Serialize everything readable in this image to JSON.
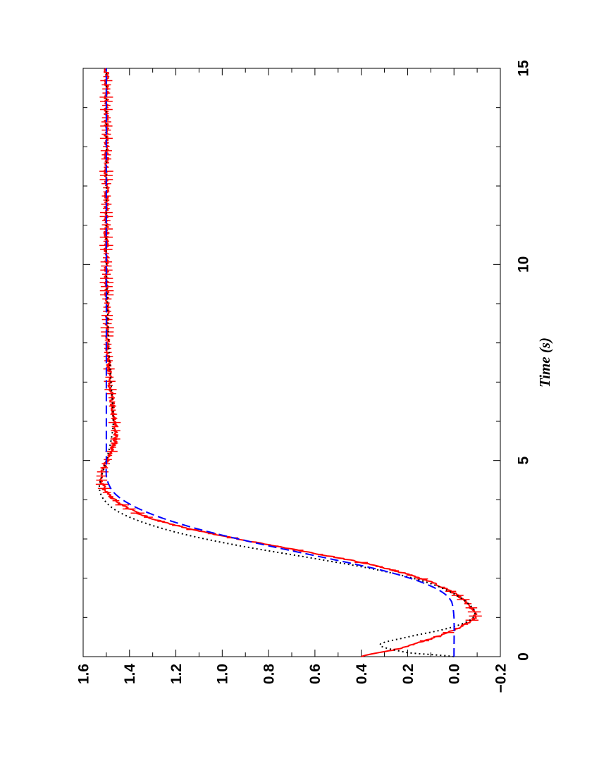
{
  "chart_data": {
    "type": "line",
    "orientation": "rotated-90-clockwise",
    "xlabel": "Time (s)",
    "ylabel": "",
    "xlim": [
      0,
      15
    ],
    "ylim": [
      -0.2,
      1.6
    ],
    "x_ticks": [
      0,
      5,
      10,
      15
    ],
    "x_tick_labels": [
      "0",
      "5",
      "10",
      "15"
    ],
    "y_ticks": [
      -0.2,
      0.0,
      0.2,
      0.4,
      0.6,
      0.8,
      1.0,
      1.2,
      1.4,
      1.6
    ],
    "y_tick_labels": [
      "−0.2",
      "0.0",
      "0.2",
      "0.4",
      "0.6",
      "0.8",
      "1.0",
      "1.2",
      "1.4",
      "1.6"
    ],
    "grid": false,
    "series": [
      {
        "style": "solid",
        "color": "#ff0000",
        "noisy": true,
        "x": [
          0,
          0.2,
          0.4,
          0.6,
          0.8,
          1.0,
          1.2,
          1.5,
          1.8,
          2.1,
          2.4,
          2.7,
          3.0,
          3.3,
          3.6,
          3.9,
          4.2,
          4.5,
          4.8,
          5.2,
          5.6,
          6.0,
          6.5,
          7.0,
          7.5,
          8.0,
          9.0,
          10.0,
          11.0,
          12.0,
          13.0,
          14.0,
          15.0
        ],
        "y": [
          0.4,
          0.24,
          0.13,
          0.03,
          -0.04,
          -0.09,
          -0.08,
          -0.03,
          0.06,
          0.2,
          0.4,
          0.66,
          0.93,
          1.17,
          1.34,
          1.44,
          1.5,
          1.52,
          1.51,
          1.48,
          1.46,
          1.465,
          1.475,
          1.485,
          1.49,
          1.495,
          1.497,
          1.5,
          1.5,
          1.5,
          1.5,
          1.5,
          1.5
        ]
      },
      {
        "style": "dotted",
        "color": "#000000",
        "x": [
          0,
          0.1,
          0.3,
          0.5,
          0.7,
          0.9,
          1.1,
          1.3,
          1.6,
          1.9,
          2.2,
          2.5,
          2.8,
          3.1,
          3.4,
          3.7,
          4.0,
          4.3,
          4.6,
          5.0,
          5.5,
          6.0,
          7.0,
          8.0,
          9.0,
          10.0,
          12.0,
          15.0
        ],
        "y": [
          0.0,
          0.2,
          0.32,
          0.2,
          0.04,
          -0.06,
          -0.09,
          -0.07,
          0.0,
          0.12,
          0.32,
          0.6,
          0.9,
          1.15,
          1.33,
          1.45,
          1.51,
          1.53,
          1.52,
          1.5,
          1.48,
          1.47,
          1.48,
          1.49,
          1.495,
          1.5,
          1.5,
          1.5
        ]
      },
      {
        "style": "dashed",
        "color": "#0000ff",
        "x": [
          0,
          1.0,
          1.4,
          1.6,
          1.8,
          2.0,
          2.2,
          2.4,
          2.6,
          2.8,
          3.0,
          3.2,
          3.4,
          3.6,
          3.8,
          4.0,
          4.2,
          4.4,
          4.6,
          5.0,
          6.0,
          8.0,
          10.0,
          12.0,
          15.0
        ],
        "y": [
          0.0,
          0.0,
          0.01,
          0.04,
          0.1,
          0.19,
          0.31,
          0.46,
          0.62,
          0.78,
          0.93,
          1.07,
          1.19,
          1.29,
          1.37,
          1.43,
          1.47,
          1.49,
          1.5,
          1.5,
          1.5,
          1.5,
          1.5,
          1.5,
          1.5
        ]
      }
    ]
  }
}
